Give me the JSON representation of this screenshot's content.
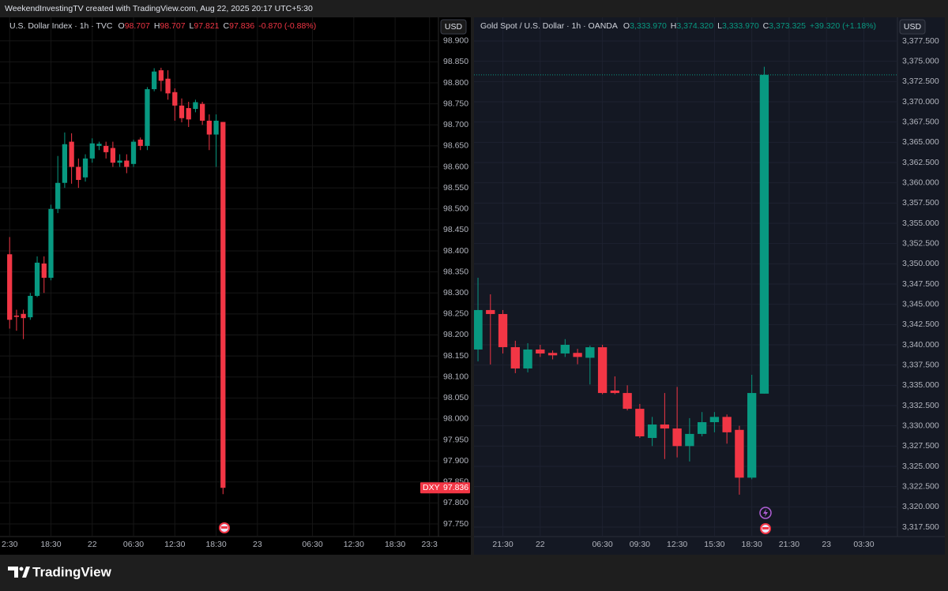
{
  "header": "WeekendInvestingTV created with TradingView.com, Aug 22, 2025 20:17 UTC+5:30",
  "footer": "TradingView",
  "chart_data": [
    {
      "type": "candlestick",
      "title": "U.S. Dollar Index · 1h · TVC",
      "currency": "USD",
      "legend": [
        {
          "label": "O",
          "value": "98.707"
        },
        {
          "label": "H",
          "value": "98.707"
        },
        {
          "label": "L",
          "value": "97.821"
        },
        {
          "label": "C",
          "value": "97.836"
        }
      ],
      "change": "-0.870 (-0.88%)",
      "legend_color": "#f23645",
      "up_color": "#089981",
      "down_color": "#f23645",
      "grid": true,
      "price_line": false,
      "last_price": {
        "symbol": "DXY",
        "value": 97.836
      },
      "x": [
        0,
        1,
        2,
        3,
        4,
        5,
        6,
        7,
        8,
        9,
        10,
        11,
        12,
        13,
        14,
        15,
        16,
        17,
        18,
        19,
        20,
        21,
        22,
        23,
        24,
        25,
        26,
        27,
        28,
        29,
        30,
        31
      ],
      "open": [
        98.392,
        98.246,
        98.25,
        98.242,
        98.293,
        98.37,
        98.336,
        98.5,
        98.562,
        98.66,
        98.6,
        98.575,
        98.62,
        98.65,
        98.65,
        98.645,
        98.61,
        98.615,
        98.607,
        98.665,
        98.65,
        98.785,
        98.83,
        98.81,
        98.778,
        98.746,
        98.74,
        98.738,
        98.75,
        98.71,
        98.677,
        98.707
      ],
      "high": [
        98.433,
        98.26,
        98.26,
        98.3,
        98.387,
        98.387,
        98.51,
        98.626,
        98.682,
        98.68,
        98.62,
        98.63,
        98.668,
        98.66,
        98.66,
        98.66,
        98.63,
        98.63,
        98.665,
        98.67,
        98.79,
        98.835,
        98.836,
        98.83,
        98.787,
        98.763,
        98.755,
        98.76,
        98.755,
        98.725,
        98.725,
        98.707
      ],
      "low": [
        98.215,
        98.21,
        98.19,
        98.236,
        98.29,
        98.3,
        98.33,
        98.49,
        98.55,
        98.56,
        98.55,
        98.565,
        98.61,
        98.64,
        98.62,
        98.6,
        98.6,
        98.585,
        98.6,
        98.64,
        98.64,
        98.78,
        98.78,
        98.76,
        98.71,
        98.706,
        98.695,
        98.73,
        98.7,
        98.64,
        98.6,
        97.821
      ],
      "close": [
        98.236,
        98.243,
        98.24,
        98.293,
        98.372,
        98.336,
        98.5,
        98.562,
        98.654,
        98.6,
        98.569,
        98.62,
        98.656,
        98.655,
        98.635,
        98.61,
        98.615,
        98.6,
        98.66,
        98.65,
        98.785,
        98.827,
        98.805,
        98.775,
        98.746,
        98.716,
        98.713,
        98.754,
        98.71,
        98.677,
        98.71,
        97.836
      ],
      "xlim": [
        -1.4,
        62.3
      ],
      "xticks": [
        {
          "value": 0,
          "label": "2:30"
        },
        {
          "value": 6,
          "label": "18:30"
        },
        {
          "value": 12,
          "label": "22"
        },
        {
          "value": 18,
          "label": "06:30"
        },
        {
          "value": 24,
          "label": "12:30"
        },
        {
          "value": 30,
          "label": "18:30"
        },
        {
          "value": 36,
          "label": "23"
        },
        {
          "value": 44,
          "label": "06:30"
        },
        {
          "value": 50,
          "label": "12:30"
        },
        {
          "value": 56,
          "label": "18:30"
        },
        {
          "value": 61,
          "label": "23:3"
        }
      ],
      "ylim": [
        97.72,
        98.956
      ],
      "yticks": [
        {
          "value": 98.9,
          "label": "98.900"
        },
        {
          "value": 98.85,
          "label": "98.850"
        },
        {
          "value": 98.8,
          "label": "98.800"
        },
        {
          "value": 98.75,
          "label": "98.750"
        },
        {
          "value": 98.7,
          "label": "98.700"
        },
        {
          "value": 98.65,
          "label": "98.650"
        },
        {
          "value": 98.6,
          "label": "98.600"
        },
        {
          "value": 98.55,
          "label": "98.550"
        },
        {
          "value": 98.5,
          "label": "98.500"
        },
        {
          "value": 98.45,
          "label": "98.450"
        },
        {
          "value": 98.4,
          "label": "98.400"
        },
        {
          "value": 98.35,
          "label": "98.350"
        },
        {
          "value": 98.3,
          "label": "98.300"
        },
        {
          "value": 98.25,
          "label": "98.250"
        },
        {
          "value": 98.2,
          "label": "98.200"
        },
        {
          "value": 98.15,
          "label": "98.150"
        },
        {
          "value": 98.1,
          "label": "98.100"
        },
        {
          "value": 98.05,
          "label": "98.050"
        },
        {
          "value": 98.0,
          "label": "98.000"
        },
        {
          "value": 97.95,
          "label": "97.950"
        },
        {
          "value": 97.9,
          "label": "97.900"
        },
        {
          "value": 97.85,
          "label": "97.850"
        },
        {
          "value": 97.8,
          "label": "97.800"
        },
        {
          "value": 97.75,
          "label": "97.750"
        }
      ]
    },
    {
      "type": "candlestick",
      "title": "Gold Spot / U.S. Dollar · 1h · OANDA",
      "currency": "USD",
      "legend": [
        {
          "label": "O",
          "value": "3,333.970"
        },
        {
          "label": "H",
          "value": "3,374.320"
        },
        {
          "label": "L",
          "value": "3,333.970"
        },
        {
          "label": "C",
          "value": "3,373.325"
        }
      ],
      "change": "+39.320 (+1.18%)",
      "legend_color": "#089981",
      "up_color": "#089981",
      "down_color": "#f23645",
      "grid": true,
      "price_line": true,
      "x": [
        0,
        1,
        2,
        3,
        4,
        5,
        6,
        7,
        8,
        9,
        10,
        11,
        12,
        13,
        14,
        15,
        16,
        17,
        18,
        19,
        20,
        21,
        22,
        23
      ],
      "open": [
        3339.42,
        3344.29,
        3343.8,
        3339.71,
        3337.08,
        3339.42,
        3339.0,
        3338.93,
        3339.0,
        3338.4,
        3339.7,
        3334.35,
        3334.05,
        3332.1,
        3328.5,
        3330.16,
        3329.67,
        3327.5,
        3329.0,
        3330.45,
        3331.1,
        3329.5,
        3323.6,
        3333.97
      ],
      "high": [
        3348.28,
        3346.23,
        3344.29,
        3340.5,
        3340.2,
        3340.0,
        3339.3,
        3340.7,
        3339.5,
        3339.9,
        3340.0,
        3336.1,
        3335.0,
        3332.7,
        3331.1,
        3334.05,
        3334.8,
        3330.95,
        3331.7,
        3331.7,
        3331.4,
        3330.0,
        3336.3,
        3374.32
      ],
      "low": [
        3337.96,
        3337.57,
        3338.93,
        3336.5,
        3336.6,
        3338.5,
        3338.2,
        3338.5,
        3337.6,
        3335.1,
        3333.9,
        3333.9,
        3331.9,
        3328.5,
        3327.5,
        3325.9,
        3326.1,
        3325.6,
        3328.7,
        3329.2,
        3327.8,
        3321.5,
        3323.4,
        3333.97
      ],
      "close": [
        3344.29,
        3343.8,
        3339.71,
        3337.08,
        3339.42,
        3338.93,
        3338.7,
        3340.0,
        3338.5,
        3339.7,
        3334.05,
        3334.05,
        3332.1,
        3328.7,
        3330.16,
        3329.67,
        3327.5,
        3329.0,
        3330.45,
        3331.1,
        3329.2,
        3323.6,
        3334.05,
        3373.325
      ],
      "xlim": [
        -0.32,
        33.7
      ],
      "xticks": [
        {
          "value": 2,
          "label": "21:30"
        },
        {
          "value": 5,
          "label": "22"
        },
        {
          "value": 10,
          "label": "06:30"
        },
        {
          "value": 13,
          "label": "09:30"
        },
        {
          "value": 16,
          "label": "12:30"
        },
        {
          "value": 19,
          "label": "15:30"
        },
        {
          "value": 22,
          "label": "18:30"
        },
        {
          "value": 25,
          "label": "21:30"
        },
        {
          "value": 28,
          "label": "23"
        },
        {
          "value": 31,
          "label": "03:30"
        }
      ],
      "ylim": [
        3316.33,
        3380.42
      ],
      "yticks": [
        {
          "value": 3377.5,
          "label": "3,377.500"
        },
        {
          "value": 3375,
          "label": "3,375.000"
        },
        {
          "value": 3372.5,
          "label": "3,372.500"
        },
        {
          "value": 3370,
          "label": "3,370.000"
        },
        {
          "value": 3367.5,
          "label": "3,367.500"
        },
        {
          "value": 3365,
          "label": "3,365.000"
        },
        {
          "value": 3362.5,
          "label": "3,362.500"
        },
        {
          "value": 3360,
          "label": "3,360.000"
        },
        {
          "value": 3357.5,
          "label": "3,357.500"
        },
        {
          "value": 3355,
          "label": "3,355.000"
        },
        {
          "value": 3352.5,
          "label": "3,352.500"
        },
        {
          "value": 3350,
          "label": "3,350.000"
        },
        {
          "value": 3347.5,
          "label": "3,347.500"
        },
        {
          "value": 3345,
          "label": "3,345.000"
        },
        {
          "value": 3342.5,
          "label": "3,342.500"
        },
        {
          "value": 3340,
          "label": "3,340.000"
        },
        {
          "value": 3337.5,
          "label": "3,337.500"
        },
        {
          "value": 3335,
          "label": "3,335.000"
        },
        {
          "value": 3332.5,
          "label": "3,332.500"
        },
        {
          "value": 3330,
          "label": "3,330.000"
        },
        {
          "value": 3327.5,
          "label": "3,327.500"
        },
        {
          "value": 3325,
          "label": "3,325.000"
        },
        {
          "value": 3322.5,
          "label": "3,322.500"
        },
        {
          "value": 3320,
          "label": "3,320.000"
        },
        {
          "value": 3317.5,
          "label": "3,317.500"
        }
      ]
    }
  ]
}
